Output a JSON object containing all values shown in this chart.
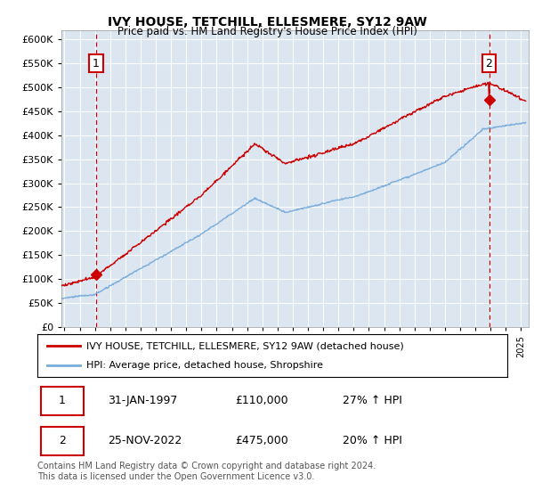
{
  "title": "IVY HOUSE, TETCHILL, ELLESMERE, SY12 9AW",
  "subtitle": "Price paid vs. HM Land Registry's House Price Index (HPI)",
  "plot_bg_color": "#dce6f1",
  "ylim": [
    0,
    620000
  ],
  "yticks": [
    0,
    50000,
    100000,
    150000,
    200000,
    250000,
    300000,
    350000,
    400000,
    450000,
    500000,
    550000,
    600000
  ],
  "xlim_start": 1994.8,
  "xlim_end": 2025.5,
  "red_line_color": "#cc0000",
  "blue_line_color": "#7aaddb",
  "marker1_date": 1997.08,
  "marker1_value": 110000,
  "marker2_date": 2022.9,
  "marker2_value": 475000,
  "legend_red": "IVY HOUSE, TETCHILL, ELLESMERE, SY12 9AW (detached house)",
  "legend_blue": "HPI: Average price, detached house, Shropshire",
  "annotation1_label": "1",
  "annotation2_label": "2",
  "table_row1": [
    "1",
    "31-JAN-1997",
    "£110,000",
    "27% ↑ HPI"
  ],
  "table_row2": [
    "2",
    "25-NOV-2022",
    "£475,000",
    "20% ↑ HPI"
  ],
  "footer": "Contains HM Land Registry data © Crown copyright and database right 2024.\nThis data is licensed under the Open Government Licence v3.0.",
  "grid_color": "#ffffff",
  "dashed_line_color": "#cc0000"
}
